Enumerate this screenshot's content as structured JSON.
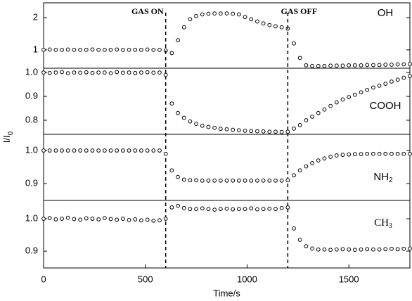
{
  "chart_data": [
    {
      "type": "scatter",
      "label": "OH",
      "color": "#000000",
      "annotations": [
        {
          "text": "GAS ON",
          "x": 600
        },
        {
          "text": "GAS OFF",
          "x": 1200
        }
      ],
      "y_label": "I/I",
      "y_label_subscript": "0",
      "x": [
        0,
        30,
        60,
        90,
        120,
        150,
        180,
        210,
        240,
        270,
        300,
        330,
        360,
        390,
        420,
        450,
        480,
        510,
        540,
        570,
        600,
        630,
        660,
        690,
        720,
        750,
        780,
        810,
        840,
        870,
        900,
        930,
        960,
        990,
        1020,
        1050,
        1080,
        1110,
        1140,
        1170,
        1200,
        1230,
        1260,
        1290,
        1320,
        1350,
        1380,
        1410,
        1440,
        1470,
        1500,
        1530,
        1560,
        1590,
        1620,
        1650,
        1680,
        1710,
        1740,
        1770,
        1800
      ],
      "values": [
        1.0,
        1.01,
        1.0,
        1.0,
        1.01,
        1.0,
        1.0,
        1.0,
        1.01,
        1.0,
        1.0,
        1.0,
        1.01,
        1.0,
        1.0,
        1.0,
        1.0,
        1.01,
        1.0,
        1.0,
        0.98,
        0.9,
        1.3,
        1.7,
        1.95,
        2.05,
        2.1,
        2.12,
        2.13,
        2.13,
        2.13,
        2.12,
        2.1,
        2.02,
        1.95,
        1.88,
        1.82,
        1.77,
        1.73,
        1.7,
        1.66,
        1.2,
        0.75,
        0.52,
        0.5,
        0.5,
        0.5,
        0.51,
        0.51,
        0.51,
        0.52,
        0.52,
        0.52,
        0.53,
        0.53,
        0.53,
        0.54,
        0.54,
        0.55,
        0.55,
        0.56
      ],
      "xlim": [
        0,
        1800
      ],
      "ylim": [
        0.43,
        2.46
      ],
      "yticks": [
        1,
        2
      ]
    },
    {
      "type": "scatter",
      "label": "COOH",
      "color": "#000000",
      "x": [
        0,
        30,
        60,
        90,
        120,
        150,
        180,
        210,
        240,
        270,
        300,
        330,
        360,
        390,
        420,
        450,
        480,
        510,
        540,
        570,
        600,
        630,
        660,
        690,
        720,
        750,
        780,
        810,
        840,
        870,
        900,
        930,
        960,
        990,
        1020,
        1050,
        1080,
        1110,
        1140,
        1170,
        1200,
        1230,
        1260,
        1290,
        1320,
        1350,
        1380,
        1410,
        1440,
        1470,
        1500,
        1530,
        1560,
        1590,
        1620,
        1650,
        1680,
        1710,
        1740,
        1770,
        1800
      ],
      "values": [
        1.0,
        0.998,
        1.0,
        1.002,
        0.997,
        1.0,
        0.999,
        1.001,
        0.998,
        1.0,
        1.0,
        0.997,
        1.002,
        0.999,
        1.0,
        0.998,
        1.0,
        1.001,
        0.999,
        1.0,
        0.99,
        0.87,
        0.83,
        0.81,
        0.795,
        0.785,
        0.777,
        0.772,
        0.768,
        0.764,
        0.762,
        0.76,
        0.758,
        0.756,
        0.755,
        0.754,
        0.753,
        0.752,
        0.752,
        0.751,
        0.752,
        0.765,
        0.78,
        0.8,
        0.815,
        0.83,
        0.845,
        0.86,
        0.875,
        0.887,
        0.897,
        0.907,
        0.917,
        0.927,
        0.937,
        0.945,
        0.953,
        0.962,
        0.97,
        0.978,
        0.985
      ],
      "xlim": [
        0,
        1800
      ],
      "ylim": [
        0.741,
        1.018
      ],
      "yticks": [
        {
          "value": 1,
          "label": "1.0"
        },
        0.9,
        0.8
      ]
    },
    {
      "type": "scatter",
      "label": "NH",
      "label_subscript": "2",
      "color": "#000000",
      "x": [
        0,
        30,
        60,
        90,
        120,
        150,
        180,
        210,
        240,
        270,
        300,
        330,
        360,
        390,
        420,
        450,
        480,
        510,
        540,
        570,
        600,
        630,
        660,
        690,
        720,
        750,
        780,
        810,
        840,
        870,
        900,
        930,
        960,
        990,
        1020,
        1050,
        1080,
        1110,
        1140,
        1170,
        1200,
        1230,
        1260,
        1290,
        1320,
        1350,
        1380,
        1410,
        1440,
        1470,
        1500,
        1530,
        1560,
        1590,
        1620,
        1650,
        1680,
        1710,
        1740,
        1770,
        1800
      ],
      "values": [
        1.0,
        1.0,
        1.0,
        1.0,
        1.0,
        1.0,
        1.0,
        1.0,
        1.0,
        1.0,
        1.0,
        1.0,
        1.0,
        1.0,
        1.0,
        1.0,
        1.0,
        1.0,
        1.0,
        1.0,
        0.99,
        0.94,
        0.92,
        0.912,
        0.91,
        0.91,
        0.909,
        0.909,
        0.909,
        0.909,
        0.909,
        0.909,
        0.909,
        0.909,
        0.909,
        0.909,
        0.909,
        0.909,
        0.909,
        0.909,
        0.91,
        0.925,
        0.94,
        0.952,
        0.962,
        0.97,
        0.976,
        0.981,
        0.985,
        0.987,
        0.988,
        0.989,
        0.989,
        0.99,
        0.99,
        0.99,
        0.99,
        0.99,
        0.99,
        0.99,
        0.99
      ],
      "xlim": [
        0,
        1800
      ],
      "ylim": [
        0.849,
        1.049
      ],
      "yticks": [
        {
          "value": 1,
          "label": "1.0"
        },
        0.9
      ]
    },
    {
      "type": "scatter",
      "label": "CH",
      "label_subscript": "3",
      "color": "#000000",
      "x": [
        0,
        30,
        60,
        90,
        120,
        150,
        180,
        210,
        240,
        270,
        300,
        330,
        360,
        390,
        420,
        450,
        480,
        510,
        540,
        570,
        600,
        630,
        660,
        690,
        720,
        750,
        780,
        810,
        840,
        870,
        900,
        930,
        960,
        990,
        1020,
        1050,
        1080,
        1110,
        1140,
        1170,
        1200,
        1230,
        1260,
        1290,
        1320,
        1350,
        1380,
        1410,
        1440,
        1470,
        1500,
        1530,
        1560,
        1590,
        1620,
        1650,
        1680,
        1710,
        1740,
        1770,
        1800
      ],
      "values": [
        1.0,
        1.002,
        0.998,
        1.0,
        1.003,
        0.999,
        0.997,
        1.001,
        1.0,
        0.998,
        1.002,
        0.999,
        0.997,
        1.0,
        0.996,
        0.998,
        0.995,
        0.997,
        0.994,
        0.995,
        1.0,
        1.035,
        1.04,
        1.033,
        1.03,
        1.03,
        1.032,
        1.03,
        1.028,
        1.03,
        1.031,
        1.029,
        1.03,
        1.03,
        1.032,
        1.029,
        1.03,
        1.031,
        1.03,
        1.033,
        1.035,
        0.97,
        0.935,
        0.915,
        0.908,
        0.905,
        0.905,
        0.904,
        0.905,
        0.906,
        0.905,
        0.904,
        0.905,
        0.906,
        0.905,
        0.905,
        0.906,
        0.907,
        0.906,
        0.907,
        0.908
      ],
      "xlim": [
        0,
        1800
      ],
      "ylim": [
        0.848,
        1.0565
      ],
      "yticks": [
        {
          "value": 1,
          "label": "1.0"
        },
        0.9
      ],
      "xticks": [
        0,
        500,
        1000,
        1500
      ],
      "x_label": "Time/s"
    }
  ]
}
